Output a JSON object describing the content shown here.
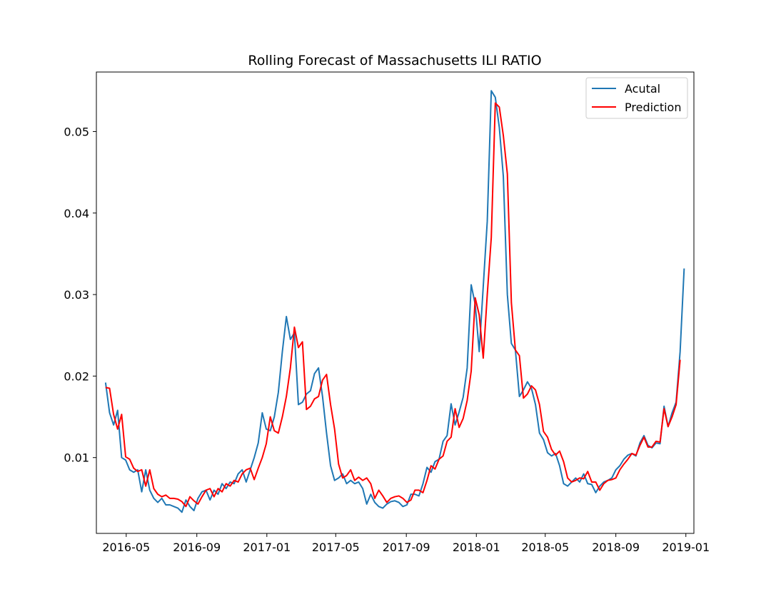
{
  "chart_data": {
    "type": "line",
    "title": "Rolling Forecast of Massachusetts ILI RATIO",
    "xlabel": "",
    "ylabel": "",
    "x_start": "2016-03-26",
    "x_step_days": 7,
    "xlim": [
      "2016-03-10",
      "2019-01-15"
    ],
    "ylim": [
      0.0007,
      0.0573
    ],
    "x_ticks": [
      "2016-05",
      "2016-09",
      "2017-01",
      "2017-05",
      "2017-09",
      "2018-01",
      "2018-05",
      "2018-09",
      "2019-01"
    ],
    "y_ticks": [
      "0.01",
      "0.02",
      "0.03",
      "0.04",
      "0.05"
    ],
    "legend_position": "top-right",
    "grid": false,
    "series": [
      {
        "name": "Acutal",
        "color": "#1f77b4",
        "values": [
          0.0192,
          0.0155,
          0.014,
          0.0158,
          0.01,
          0.0097,
          0.0085,
          0.0082,
          0.0085,
          0.0058,
          0.0085,
          0.006,
          0.005,
          0.0045,
          0.005,
          0.0042,
          0.0042,
          0.004,
          0.0038,
          0.0033,
          0.0048,
          0.004,
          0.0035,
          0.005,
          0.0058,
          0.006,
          0.0048,
          0.006,
          0.0055,
          0.0068,
          0.0062,
          0.007,
          0.0068,
          0.008,
          0.0085,
          0.007,
          0.0085,
          0.01,
          0.0118,
          0.0155,
          0.0135,
          0.0133,
          0.015,
          0.018,
          0.023,
          0.0273,
          0.0245,
          0.0253,
          0.0165,
          0.0168,
          0.0178,
          0.0182,
          0.0203,
          0.021,
          0.0175,
          0.013,
          0.009,
          0.0072,
          0.0075,
          0.008,
          0.0068,
          0.0072,
          0.0068,
          0.007,
          0.0062,
          0.0043,
          0.0055,
          0.0045,
          0.004,
          0.0038,
          0.0043,
          0.0046,
          0.0047,
          0.0045,
          0.004,
          0.0042,
          0.0055,
          0.0055,
          0.0053,
          0.0068,
          0.0088,
          0.0082,
          0.0095,
          0.0098,
          0.012,
          0.0127,
          0.0166,
          0.014,
          0.0156,
          0.0174,
          0.021,
          0.0312,
          0.0288,
          0.023,
          0.031,
          0.039,
          0.055,
          0.0542,
          0.0505,
          0.0445,
          0.03,
          0.024,
          0.0232,
          0.0175,
          0.0183,
          0.0193,
          0.0185,
          0.0165,
          0.013,
          0.0122,
          0.0106,
          0.0102,
          0.0105,
          0.009,
          0.0068,
          0.0065,
          0.007,
          0.0075,
          0.007,
          0.008,
          0.0068,
          0.0067,
          0.0057,
          0.0065,
          0.007,
          0.0072,
          0.0075,
          0.0085,
          0.009,
          0.0098,
          0.0103,
          0.0105,
          0.0102,
          0.0118,
          0.0127,
          0.0115,
          0.0112,
          0.0118,
          0.0117,
          0.0163,
          0.0138,
          0.0155,
          0.0168,
          0.023,
          0.0332
        ]
      },
      {
        "name": "Prediction",
        "color": "#ff0000",
        "values": [
          0.0186,
          0.0185,
          0.0153,
          0.0135,
          0.0153,
          0.0101,
          0.0098,
          0.0087,
          0.0083,
          0.0085,
          0.0065,
          0.0085,
          0.0062,
          0.0055,
          0.0052,
          0.0054,
          0.005,
          0.005,
          0.0049,
          0.0046,
          0.004,
          0.0052,
          0.0047,
          0.0043,
          0.0052,
          0.006,
          0.0062,
          0.0052,
          0.0062,
          0.0058,
          0.0068,
          0.0065,
          0.0072,
          0.007,
          0.008,
          0.0085,
          0.0087,
          0.0073,
          0.0087,
          0.01,
          0.0117,
          0.015,
          0.0133,
          0.013,
          0.015,
          0.0175,
          0.021,
          0.026,
          0.0235,
          0.0242,
          0.0159,
          0.0163,
          0.0172,
          0.0175,
          0.0195,
          0.0202,
          0.0165,
          0.0135,
          0.0092,
          0.0075,
          0.0078,
          0.0085,
          0.0072,
          0.0076,
          0.0072,
          0.0075,
          0.0068,
          0.005,
          0.006,
          0.0053,
          0.0045,
          0.005,
          0.0052,
          0.0053,
          0.005,
          0.0045,
          0.0048,
          0.006,
          0.006,
          0.0057,
          0.0072,
          0.009,
          0.0086,
          0.0098,
          0.0102,
          0.012,
          0.0125,
          0.016,
          0.0137,
          0.0148,
          0.017,
          0.0206,
          0.0296,
          0.0275,
          0.0222,
          0.03,
          0.037,
          0.0535,
          0.053,
          0.0495,
          0.0448,
          0.029,
          0.0232,
          0.0225,
          0.0173,
          0.0178,
          0.0188,
          0.0183,
          0.0165,
          0.0132,
          0.0125,
          0.011,
          0.0103,
          0.0108,
          0.0095,
          0.0075,
          0.007,
          0.0072,
          0.0075,
          0.0074,
          0.0083,
          0.007,
          0.007,
          0.006,
          0.0068,
          0.0072,
          0.0073,
          0.0075,
          0.0085,
          0.0092,
          0.0098,
          0.0105,
          0.0103,
          0.0115,
          0.0125,
          0.0113,
          0.0113,
          0.012,
          0.0119,
          0.016,
          0.0138,
          0.015,
          0.0165,
          0.022
        ]
      }
    ]
  }
}
